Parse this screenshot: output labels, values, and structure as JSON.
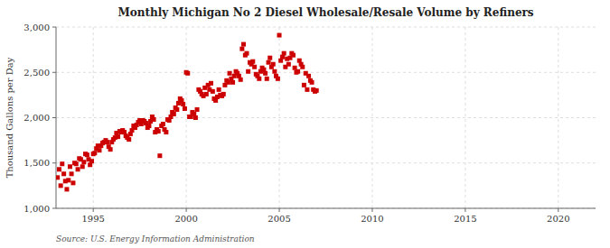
{
  "chart_data": {
    "type": "scatter",
    "title": "Monthly Michigan No 2 Diesel Wholesale/Resale Volume by Refiners",
    "ylabel": "Thousand Gallons per Day",
    "source": "Source: U.S. Energy Information Administration",
    "color": "#cc0000",
    "marker": "square",
    "grid": true,
    "xlim": [
      1993.0,
      2022.0
    ],
    "ylim": [
      1000,
      3000
    ],
    "xticks": [
      1995,
      2000,
      2005,
      2010,
      2015,
      2020
    ],
    "yticks": [
      {
        "value": 1000,
        "label": "1,000"
      },
      {
        "value": 1500,
        "label": "1,500"
      },
      {
        "value": 2000,
        "label": "2,000"
      },
      {
        "value": 2500,
        "label": "2,500"
      },
      {
        "value": 3000,
        "label": "3,000"
      }
    ],
    "x": [
      1993.08,
      1993.17,
      1993.25,
      1993.33,
      1993.42,
      1993.5,
      1993.58,
      1993.67,
      1993.75,
      1993.83,
      1993.92,
      1994.0,
      1994.08,
      1994.17,
      1994.25,
      1994.33,
      1994.42,
      1994.5,
      1994.58,
      1994.67,
      1994.75,
      1994.83,
      1994.92,
      1995.0,
      1995.08,
      1995.17,
      1995.25,
      1995.33,
      1995.42,
      1995.5,
      1995.58,
      1995.67,
      1995.75,
      1995.83,
      1995.92,
      1996.0,
      1996.08,
      1996.17,
      1996.25,
      1996.33,
      1996.42,
      1996.5,
      1996.58,
      1996.67,
      1996.75,
      1996.83,
      1996.92,
      1997.0,
      1997.08,
      1997.17,
      1997.25,
      1997.33,
      1997.42,
      1997.5,
      1997.58,
      1997.67,
      1997.75,
      1997.83,
      1997.92,
      1998.0,
      1998.08,
      1998.17,
      1998.25,
      1998.33,
      1998.42,
      1998.5,
      1998.58,
      1998.67,
      1998.75,
      1998.83,
      1998.92,
      1999.0,
      1999.08,
      1999.17,
      1999.25,
      1999.33,
      1999.42,
      1999.5,
      1999.58,
      1999.67,
      1999.75,
      1999.83,
      1999.92,
      2000.0,
      2000.08,
      2000.17,
      2000.25,
      2000.33,
      2000.42,
      2000.5,
      2000.58,
      2000.67,
      2000.75,
      2000.83,
      2000.92,
      2001.0,
      2001.08,
      2001.17,
      2001.25,
      2001.33,
      2001.42,
      2001.5,
      2001.58,
      2001.67,
      2001.75,
      2001.83,
      2001.92,
      2002.0,
      2002.08,
      2002.17,
      2002.25,
      2002.33,
      2002.42,
      2002.5,
      2002.58,
      2002.67,
      2002.75,
      2002.83,
      2002.92,
      2003.0,
      2003.08,
      2003.17,
      2003.25,
      2003.33,
      2003.42,
      2003.5,
      2003.58,
      2003.67,
      2003.75,
      2003.83,
      2003.92,
      2004.0,
      2004.08,
      2004.17,
      2004.25,
      2004.33,
      2004.42,
      2004.5,
      2004.58,
      2004.67,
      2004.75,
      2004.83,
      2004.92,
      2005.0,
      2005.08,
      2005.17,
      2005.25,
      2005.33,
      2005.42,
      2005.5,
      2005.58,
      2005.67,
      2005.75,
      2005.83,
      2005.92,
      2006.0,
      2006.08,
      2006.17,
      2006.25,
      2006.33,
      2006.42,
      2006.5,
      2006.58,
      2006.67,
      2006.75,
      2006.83,
      2006.92,
      2007.0
    ],
    "values": [
      1340,
      1430,
      1250,
      1490,
      1380,
      1300,
      1210,
      1310,
      1460,
      1380,
      1280,
      1500,
      1490,
      1430,
      1550,
      1540,
      1460,
      1510,
      1600,
      1590,
      1540,
      1480,
      1520,
      1600,
      1610,
      1660,
      1690,
      1640,
      1690,
      1720,
      1730,
      1750,
      1730,
      1680,
      1650,
      1730,
      1760,
      1780,
      1830,
      1790,
      1850,
      1840,
      1860,
      1840,
      1800,
      1780,
      1760,
      1820,
      1860,
      1910,
      1890,
      1920,
      1950,
      1970,
      1930,
      1970,
      1960,
      1940,
      1890,
      1910,
      1960,
      2010,
      1980,
      1840,
      1870,
      1850,
      1580,
      1910,
      1930,
      1870,
      1840,
      1980,
      1970,
      2010,
      2060,
      2040,
      2110,
      2090,
      2160,
      2210,
      2190,
      2150,
      2100,
      2500,
      2490,
      2010,
      2010,
      2060,
      2040,
      2000,
      2090,
      2310,
      2290,
      2260,
      2240,
      2330,
      2260,
      2360,
      2310,
      2380,
      2290,
      2210,
      2190,
      2230,
      2310,
      2250,
      2240,
      2260,
      2360,
      2410,
      2390,
      2490,
      2430,
      2390,
      2460,
      2510,
      2490,
      2460,
      2420,
      2760,
      2810,
      2690,
      2710,
      2510,
      2610,
      2590,
      2620,
      2560,
      2480,
      2460,
      2430,
      2510,
      2550,
      2530,
      2490,
      2430,
      2610,
      2660,
      2560,
      2590,
      2510,
      2460,
      2430,
      2910,
      2630,
      2670,
      2710,
      2560,
      2650,
      2590,
      2660,
      2710,
      2690,
      2550,
      2500,
      2510,
      2630,
      2590,
      2560,
      2360,
      2490,
      2310,
      2460,
      2410,
      2390,
      2310,
      2290,
      2300
    ]
  }
}
